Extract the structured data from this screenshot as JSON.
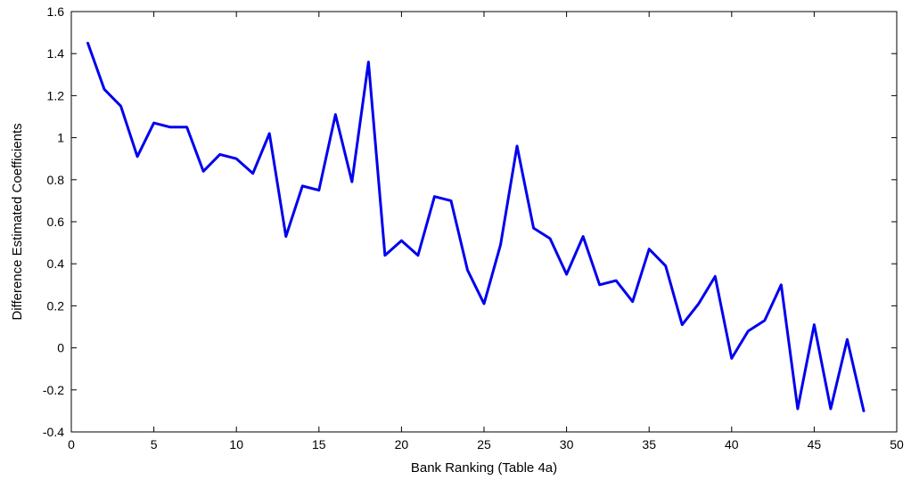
{
  "chart_data": {
    "type": "line",
    "title": "",
    "xlabel": "Bank Ranking (Table 4a)",
    "ylabel": "Difference Estimated Coefficients",
    "xlim": [
      0,
      50
    ],
    "ylim": [
      -0.4,
      1.6
    ],
    "xticks": [
      0,
      5,
      10,
      15,
      20,
      25,
      30,
      35,
      40,
      45,
      50
    ],
    "yticks": [
      -0.4,
      -0.2,
      0,
      0.2,
      0.4,
      0.6,
      0.8,
      1,
      1.2,
      1.4,
      1.6
    ],
    "xtick_labels": [
      "0",
      "5",
      "10",
      "15",
      "20",
      "25",
      "30",
      "35",
      "40",
      "45",
      "50"
    ],
    "ytick_labels": [
      "-0.4",
      "-0.2",
      "0",
      "0.2",
      "0.4",
      "0.6",
      "0.8",
      "1",
      "1.2",
      "1.4",
      "1.6"
    ],
    "grid": false,
    "color": "#0000ee",
    "series": [
      {
        "x": [
          1,
          2,
          3,
          4,
          5,
          6,
          7,
          8,
          9,
          10,
          11,
          12,
          13,
          14,
          15,
          16,
          17,
          18,
          19,
          20,
          21,
          22,
          23,
          24,
          25,
          26,
          27,
          28,
          29,
          30,
          31,
          32,
          33,
          34,
          35,
          36,
          37,
          38,
          39,
          40,
          41,
          42,
          43,
          44,
          45,
          46,
          47,
          48
        ],
        "values": [
          1.45,
          1.23,
          1.15,
          0.91,
          1.07,
          1.05,
          1.05,
          0.84,
          0.92,
          0.9,
          0.83,
          1.02,
          0.53,
          0.77,
          0.75,
          1.11,
          0.79,
          1.36,
          0.44,
          0.51,
          0.44,
          0.72,
          0.7,
          0.37,
          0.21,
          0.49,
          0.96,
          0.57,
          0.52,
          0.35,
          0.53,
          0.3,
          0.32,
          0.22,
          0.47,
          0.39,
          0.11,
          0.21,
          0.34,
          -0.05,
          0.08,
          0.13,
          0.3,
          -0.29,
          0.11,
          -0.29,
          0.04,
          -0.3
        ]
      }
    ]
  }
}
